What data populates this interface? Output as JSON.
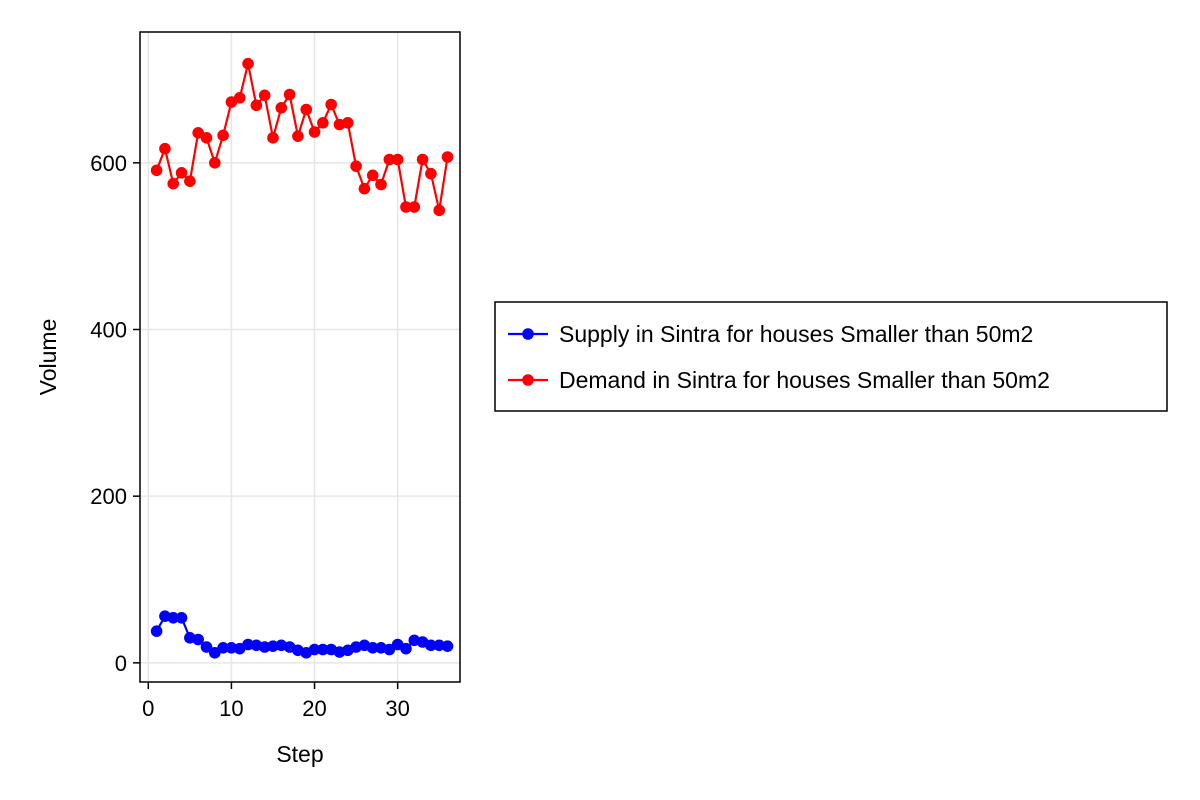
{
  "chart_data": {
    "type": "line",
    "title": "",
    "xlabel": "Step",
    "ylabel": "Volume",
    "xlim": [
      -1,
      37.5
    ],
    "ylim": [
      -23,
      757
    ],
    "xticks": [
      0,
      10,
      20,
      30
    ],
    "yticks": [
      0,
      200,
      400,
      600
    ],
    "xtick_labels": [
      "0",
      "10",
      "20",
      "30"
    ],
    "ytick_labels": [
      "0",
      "200",
      "400",
      "600"
    ],
    "grid": true,
    "legend_position": "right",
    "x": [
      1,
      2,
      3,
      4,
      5,
      6,
      7,
      8,
      9,
      10,
      11,
      12,
      13,
      14,
      15,
      16,
      17,
      18,
      19,
      20,
      21,
      22,
      23,
      24,
      25,
      26,
      27,
      28,
      29,
      30,
      31,
      32,
      33,
      34,
      35,
      36
    ],
    "series": [
      {
        "name": "Supply in Sintra for houses Smaller than 50m2",
        "color": "#0000ff",
        "values": [
          38,
          56,
          54,
          54,
          30,
          28,
          19,
          12,
          18,
          18,
          17,
          22,
          21,
          19,
          20,
          21,
          19,
          15,
          12,
          16,
          16,
          16,
          13,
          15,
          19,
          21,
          18,
          18,
          16,
          22,
          17,
          27,
          25,
          21,
          21,
          20
        ]
      },
      {
        "name": "Demand in Sintra for houses Smaller than 50m2",
        "color": "#ff0000",
        "values": [
          591,
          617,
          575,
          588,
          578,
          636,
          630,
          600,
          633,
          673,
          678,
          719,
          669,
          681,
          630,
          666,
          682,
          632,
          664,
          637,
          648,
          670,
          646,
          648,
          596,
          569,
          585,
          574,
          604,
          604,
          547,
          547,
          604,
          587,
          543,
          607
        ]
      }
    ]
  }
}
